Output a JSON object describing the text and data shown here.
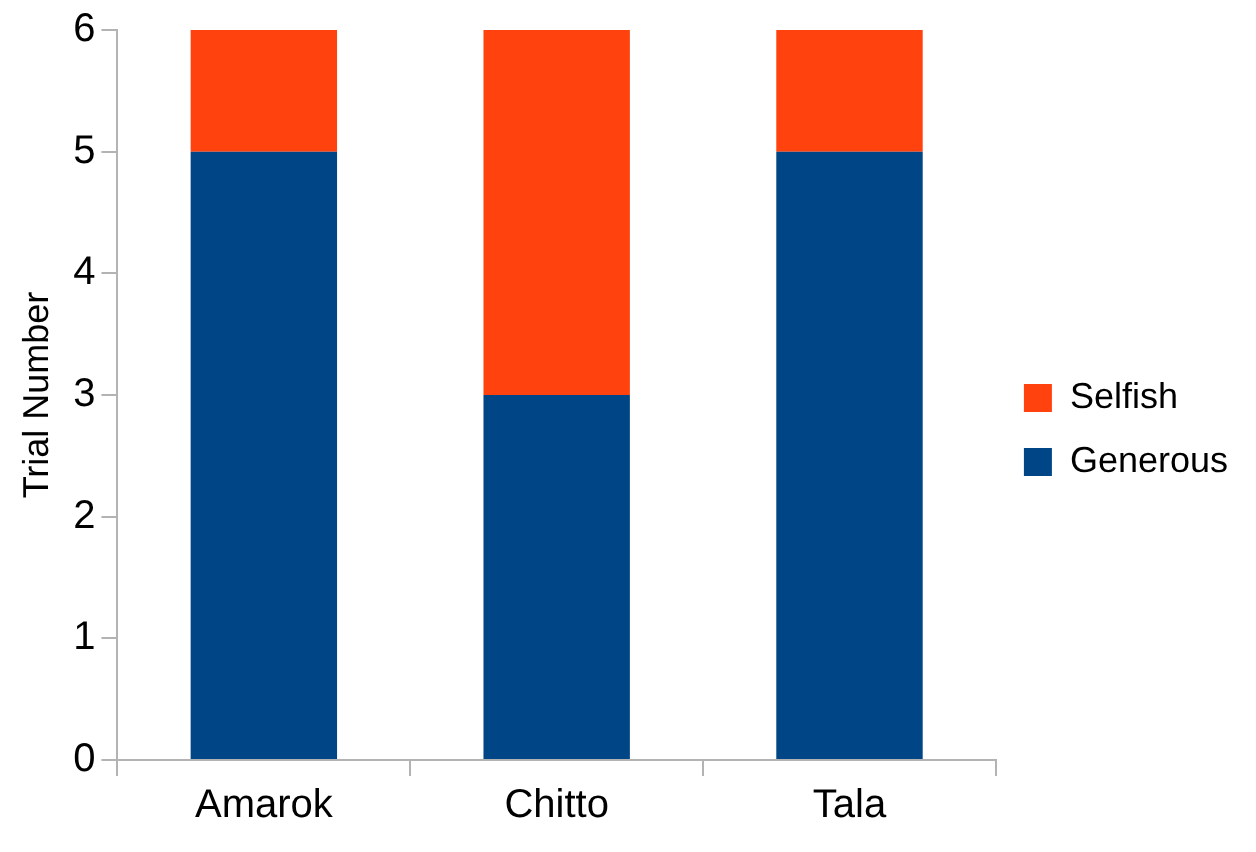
{
  "chart_data": {
    "type": "bar",
    "stacked": true,
    "ylabel": "Trial Number",
    "categories": [
      "Amarok",
      "Chitto",
      "Tala"
    ],
    "series": [
      {
        "name": "Generous",
        "color": "#004586",
        "values": [
          5,
          3,
          5
        ]
      },
      {
        "name": "Selfish",
        "color": "#ff420e",
        "values": [
          1,
          3,
          1
        ]
      }
    ],
    "ylim": [
      0,
      6
    ],
    "yticks": [
      0,
      1,
      2,
      3,
      4,
      5,
      6
    ],
    "grid": false,
    "legend": "right"
  }
}
